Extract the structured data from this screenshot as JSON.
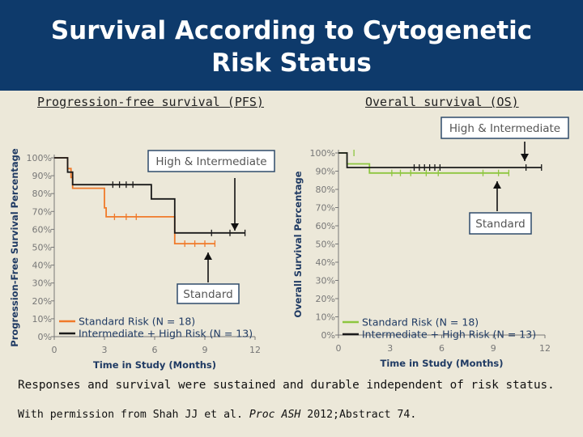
{
  "slide": {
    "title_line1": "Survival According to Cytogenetic",
    "title_line2": "Risk Status",
    "subtitle_left": "Progression-free survival (PFS)",
    "subtitle_right": "Overall survival (OS)",
    "footer_main": "Responses and survival were sustained and durable independent of risk status.",
    "footer_credit_pre": "With permission from Shah JJ et al. ",
    "footer_credit_journal": "Proc ASH",
    "footer_credit_post": " 2012;Abstract 74."
  },
  "colors": {
    "header_bg": "#0e3a6b",
    "background": "#ece8d9",
    "pfs_standard": "#f07a2a",
    "os_standard": "#8dc63f",
    "intermediate_high": "#1a1a1a",
    "box_border": "#2e4a6b"
  },
  "chart_data": [
    {
      "type": "line",
      "name": "PFS",
      "xlabel": "Time in Study (Months)",
      "ylabel": "Progression-Free Survival Percentage",
      "x_ticks": [
        "0",
        "3",
        "6",
        "9",
        "12"
      ],
      "y_ticks": [
        "0%",
        "10%",
        "20%",
        "30%",
        "40%",
        "50%",
        "60%",
        "70%",
        "80%",
        "90%",
        "100%"
      ],
      "xlim": [
        0,
        12
      ],
      "ylim": [
        0,
        100
      ],
      "callouts": [
        "High & Intermediate",
        "Standard"
      ],
      "series": [
        {
          "name": "Standard Risk (N = 18)",
          "color": "#f07a2a",
          "steps": [
            [
              0,
              100
            ],
            [
              0.8,
              100
            ],
            [
              0.8,
              94
            ],
            [
              1.0,
              94
            ],
            [
              1.0,
              89
            ],
            [
              1.1,
              89
            ],
            [
              1.1,
              83
            ],
            [
              3.0,
              83
            ],
            [
              3.0,
              72
            ],
            [
              3.1,
              72
            ],
            [
              3.1,
              67
            ],
            [
              7.2,
              67
            ],
            [
              7.2,
              52
            ],
            [
              9.6,
              52
            ]
          ],
          "censored": [
            [
              3.6,
              67
            ],
            [
              4.3,
              67
            ],
            [
              4.9,
              67
            ],
            [
              7.8,
              52
            ],
            [
              8.4,
              52
            ],
            [
              9.0,
              52
            ],
            [
              9.6,
              52
            ]
          ]
        },
        {
          "name": "Intermediate + High Risk (N = 13)",
          "color": "#1a1a1a",
          "steps": [
            [
              0,
              100
            ],
            [
              0.8,
              100
            ],
            [
              0.8,
              92
            ],
            [
              1.1,
              92
            ],
            [
              1.1,
              85
            ],
            [
              5.8,
              85
            ],
            [
              5.8,
              77
            ],
            [
              7.2,
              77
            ],
            [
              7.2,
              58
            ],
            [
              11.4,
              58
            ]
          ],
          "censored": [
            [
              3.5,
              85
            ],
            [
              3.9,
              85
            ],
            [
              4.3,
              85
            ],
            [
              4.7,
              85
            ],
            [
              9.4,
              58
            ],
            [
              10.5,
              58
            ],
            [
              11.4,
              58
            ]
          ]
        }
      ],
      "legend": [
        "Standard Risk (N = 18)",
        "Intermediate + High Risk (N = 13)"
      ],
      "legend_position": "bottom-left"
    },
    {
      "type": "line",
      "name": "OS",
      "xlabel": "Time in Study (Months)",
      "ylabel": "Overall Survival Percentage",
      "x_ticks": [
        "0",
        "3",
        "6",
        "9",
        "12"
      ],
      "y_ticks": [
        "0%",
        "10%",
        "20%",
        "30%",
        "40%",
        "50%",
        "60%",
        "70%",
        "80%",
        "90%",
        "100%"
      ],
      "xlim": [
        0,
        12
      ],
      "ylim": [
        0,
        100
      ],
      "callouts": [
        "High & Intermediate",
        "Standard"
      ],
      "series": [
        {
          "name": "Standard Risk (N = 18)",
          "color": "#8dc63f",
          "steps": [
            [
              0,
              100
            ],
            [
              0.5,
              100
            ],
            [
              0.5,
              94
            ],
            [
              1.8,
              94
            ],
            [
              1.8,
              89
            ],
            [
              9.9,
              89
            ]
          ],
          "censored": [
            [
              0.9,
              100
            ],
            [
              3.1,
              89
            ],
            [
              3.6,
              89
            ],
            [
              4.2,
              89
            ],
            [
              5.1,
              89
            ],
            [
              5.8,
              89
            ],
            [
              8.4,
              89
            ],
            [
              9.3,
              89
            ],
            [
              9.9,
              89
            ]
          ]
        },
        {
          "name": "Intermediate + High Risk (N = 13)",
          "color": "#1a1a1a",
          "steps": [
            [
              0,
              100
            ],
            [
              0.5,
              100
            ],
            [
              0.5,
              92
            ],
            [
              11.8,
              92
            ]
          ],
          "censored": [
            [
              4.4,
              92
            ],
            [
              4.7,
              92
            ],
            [
              5.0,
              92
            ],
            [
              5.3,
              92
            ],
            [
              5.6,
              92
            ],
            [
              5.9,
              92
            ],
            [
              10.9,
              92
            ],
            [
              11.8,
              92
            ]
          ]
        }
      ],
      "legend": [
        "Standard Risk (N = 18)",
        "Intermediate + High Risk (N = 13)"
      ],
      "legend_position": "bottom-left"
    }
  ]
}
